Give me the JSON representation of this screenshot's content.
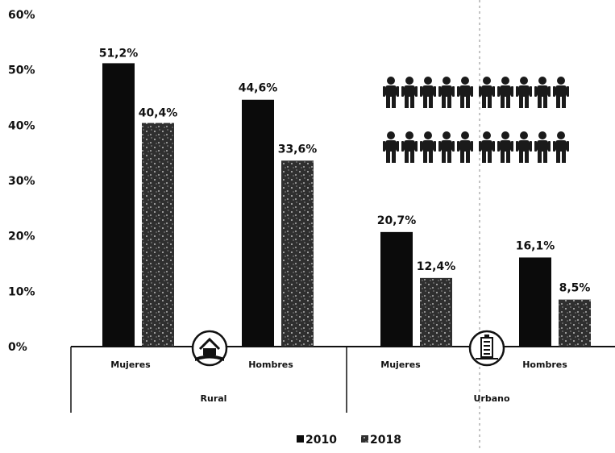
{
  "chart_data": {
    "type": "bar",
    "title": "",
    "xlabel": "",
    "ylabel": "",
    "ylim": [
      0,
      60
    ],
    "y_ticks": [
      "0%",
      "10%",
      "20%",
      "30%",
      "40%",
      "50%",
      "60%"
    ],
    "groups": [
      {
        "label": "Rural",
        "icon": "rural-house-icon"
      },
      {
        "label": "Urbano",
        "icon": "urban-building-icon"
      }
    ],
    "categories": [
      {
        "label": "Mujeres",
        "group": "Rural"
      },
      {
        "label": "Hombres",
        "group": "Rural"
      },
      {
        "label": "Mujeres",
        "group": "Urbano"
      },
      {
        "label": "Hombres",
        "group": "Urbano"
      }
    ],
    "series": [
      {
        "name": "2010",
        "color": "#0b0b0b",
        "values": [
          51.2,
          44.6,
          20.7,
          16.1
        ],
        "value_labels": [
          "51,2%",
          "44,6%",
          "20,7%",
          "16,1%"
        ]
      },
      {
        "name": "2018",
        "color": "#3a3a3a",
        "pattern": "speckled",
        "values": [
          40.4,
          33.6,
          12.4,
          8.5
        ],
        "value_labels": [
          "40,4%",
          "33,6%",
          "12,4%",
          "8,5%"
        ]
      }
    ],
    "legend": {
      "position": "bottom-center",
      "items": [
        "2010",
        "2018"
      ]
    },
    "decoration": {
      "icon": "people-icon",
      "rows": 2,
      "per_row": 10
    },
    "grid": false
  }
}
